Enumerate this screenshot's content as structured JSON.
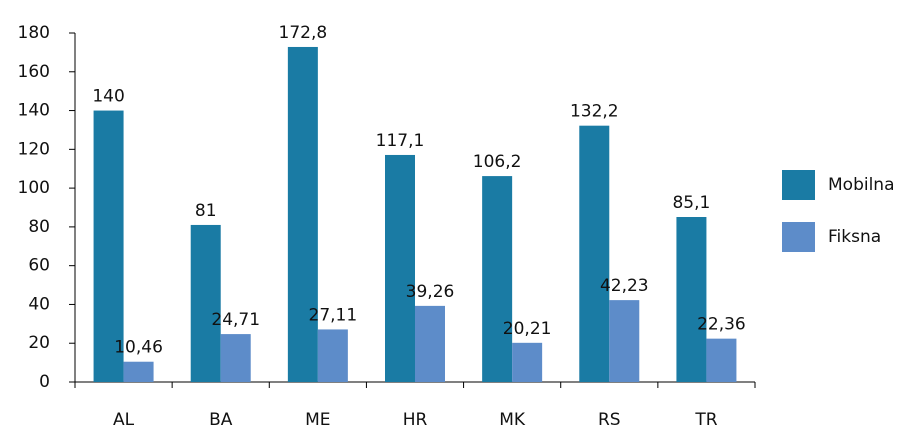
{
  "chart_data": {
    "type": "bar",
    "categories": [
      "AL",
      "BA",
      "ME",
      "HR",
      "MK",
      "RS",
      "TR"
    ],
    "series": [
      {
        "name": "Mobilna",
        "color": "#1a7ba4",
        "values": [
          140,
          81,
          172.8,
          117.1,
          106.2,
          132.2,
          85.1
        ],
        "value_labels": [
          "140",
          "81",
          "172,8",
          "117,1",
          "106,2",
          "132,2",
          "85,1"
        ]
      },
      {
        "name": "Fiksna",
        "color": "#5d8cc9",
        "values": [
          10.46,
          24.71,
          27.11,
          39.26,
          20.21,
          42.23,
          22.36
        ],
        "value_labels": [
          "10,46",
          "24,71",
          "27,11",
          "39,26",
          "20,21",
          "42,23",
          "22,36"
        ]
      }
    ],
    "ylim": [
      0,
      180
    ],
    "yticks": [
      0,
      20,
      40,
      60,
      80,
      100,
      120,
      140,
      160,
      180
    ],
    "legend": "right"
  }
}
